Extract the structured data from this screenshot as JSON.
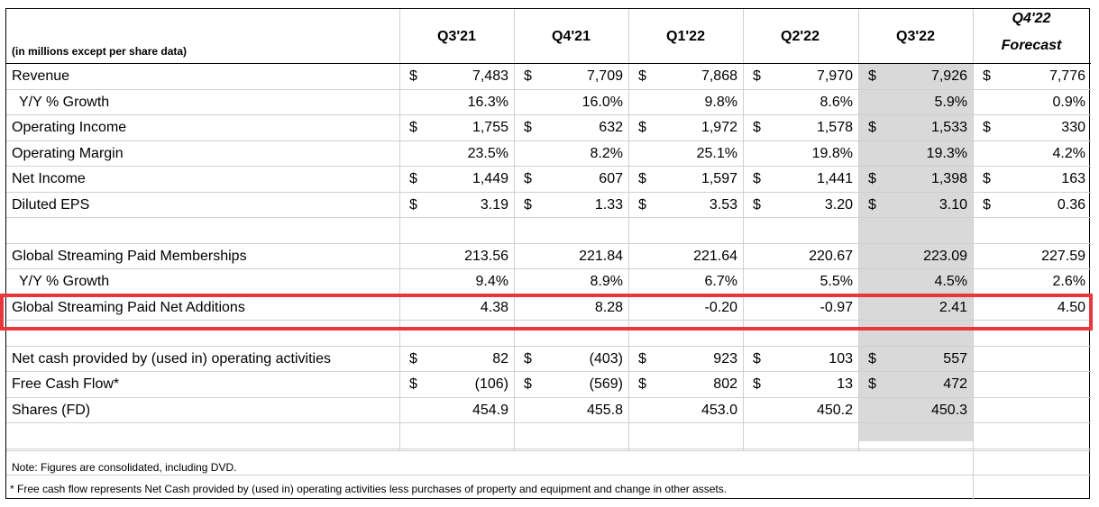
{
  "header": {
    "subtitle": "(in millions except per share data)",
    "columns": [
      "Q3'21",
      "Q4'21",
      "Q1'22",
      "Q2'22",
      "Q3'22"
    ],
    "forecast_top": "Q4'22",
    "forecast_bottom": "Forecast"
  },
  "colors": {
    "shaded_column": "#d9d9d9",
    "highlight_border": "#e8373b"
  },
  "rows": {
    "revenue": {
      "label": "Revenue",
      "dollar": "$",
      "values": [
        "7,483",
        "7,709",
        "7,868",
        "7,970",
        "7,926",
        "7,776"
      ]
    },
    "revenue_growth": {
      "label": "Y/Y % Growth",
      "values": [
        "16.3%",
        "16.0%",
        "9.8%",
        "8.6%",
        "5.9%",
        "0.9%"
      ]
    },
    "operating_income": {
      "label": "Operating Income",
      "dollar": "$",
      "values": [
        "1,755",
        "632",
        "1,972",
        "1,578",
        "1,533",
        "330"
      ]
    },
    "operating_margin": {
      "label": "Operating Margin",
      "values": [
        "23.5%",
        "8.2%",
        "25.1%",
        "19.8%",
        "19.3%",
        "4.2%"
      ]
    },
    "net_income": {
      "label": "Net Income",
      "dollar": "$",
      "values": [
        "1,449",
        "607",
        "1,597",
        "1,441",
        "1,398",
        "163"
      ]
    },
    "diluted_eps": {
      "label": "Diluted EPS",
      "dollar": "$",
      "values": [
        "3.19",
        "1.33",
        "3.53",
        "3.20",
        "3.10",
        "0.36"
      ]
    },
    "memberships": {
      "label": "Global Streaming Paid Memberships",
      "values": [
        "213.56",
        "221.84",
        "221.64",
        "220.67",
        "223.09",
        "227.59"
      ]
    },
    "memberships_growth": {
      "label": "Y/Y % Growth",
      "values": [
        "9.4%",
        "8.9%",
        "6.7%",
        "5.5%",
        "4.5%",
        "2.6%"
      ]
    },
    "net_additions": {
      "label": "Global Streaming Paid Net Additions",
      "values": [
        "4.38",
        "8.28",
        "-0.20",
        "-0.97",
        "2.41",
        "4.50"
      ]
    },
    "operating_cash": {
      "label": "Net cash provided by (used in) operating activities",
      "dollar": "$",
      "values": [
        "82",
        "(403)",
        "923",
        "103",
        "557"
      ]
    },
    "free_cash_flow": {
      "label": "Free Cash Flow*",
      "dollar": "$",
      "values": [
        "(106)",
        "(569)",
        "802",
        "13",
        "472"
      ]
    },
    "shares": {
      "label": "Shares (FD)",
      "values": [
        "454.9",
        "455.8",
        "453.0",
        "450.2",
        "450.3"
      ]
    }
  },
  "notes": {
    "note1": "Note: Figures are consolidated, including DVD.",
    "note2": "* Free cash flow represents Net Cash provided by (used in) operating activities less purchases of property and equipment and change in other assets."
  }
}
